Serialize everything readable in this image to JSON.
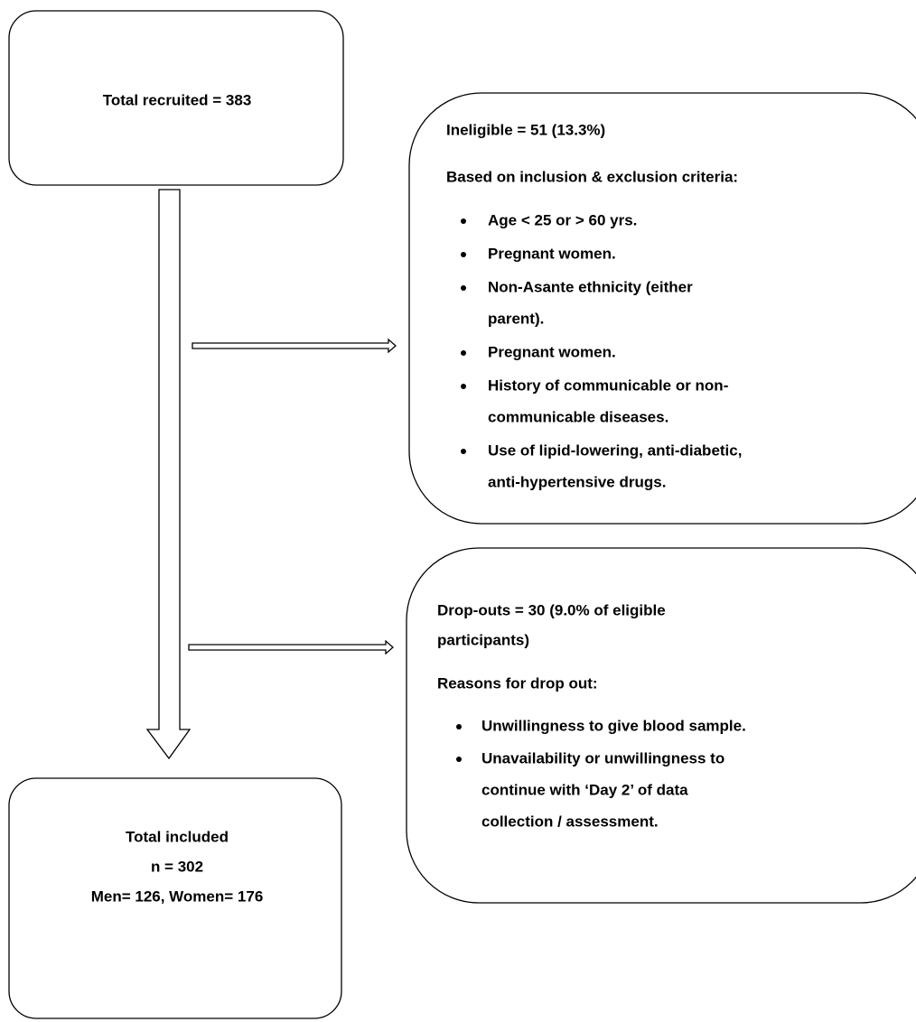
{
  "recruited": {
    "label": "Total recruited = 383"
  },
  "ineligible": {
    "title": "Ineligible = 51 (13.3%)",
    "subtitle": "Based on inclusion & exclusion criteria:",
    "items": [
      [
        "Age < 25 or > 60 yrs."
      ],
      [
        "Pregnant women."
      ],
      [
        "Non-Asante ethnicity (either",
        "parent)."
      ],
      [
        "Pregnant women."
      ],
      [
        "History of communicable or non-",
        "communicable diseases."
      ],
      [
        "Use of lipid-lowering, anti-diabetic,",
        "anti-hypertensive drugs."
      ]
    ]
  },
  "dropouts": {
    "title": [
      "Drop-outs = 30 (9.0% of eligible",
      "participants)"
    ],
    "subtitle": "Reasons for drop out:",
    "items": [
      [
        "Unwillingness to give blood sample."
      ],
      [
        "Unavailability or unwillingness to",
        "continue with ‘Day 2’ of data",
        "collection / assessment."
      ]
    ]
  },
  "included": {
    "lines": [
      "Total included",
      "n = 302",
      "Men= 126, Women= 176"
    ]
  }
}
